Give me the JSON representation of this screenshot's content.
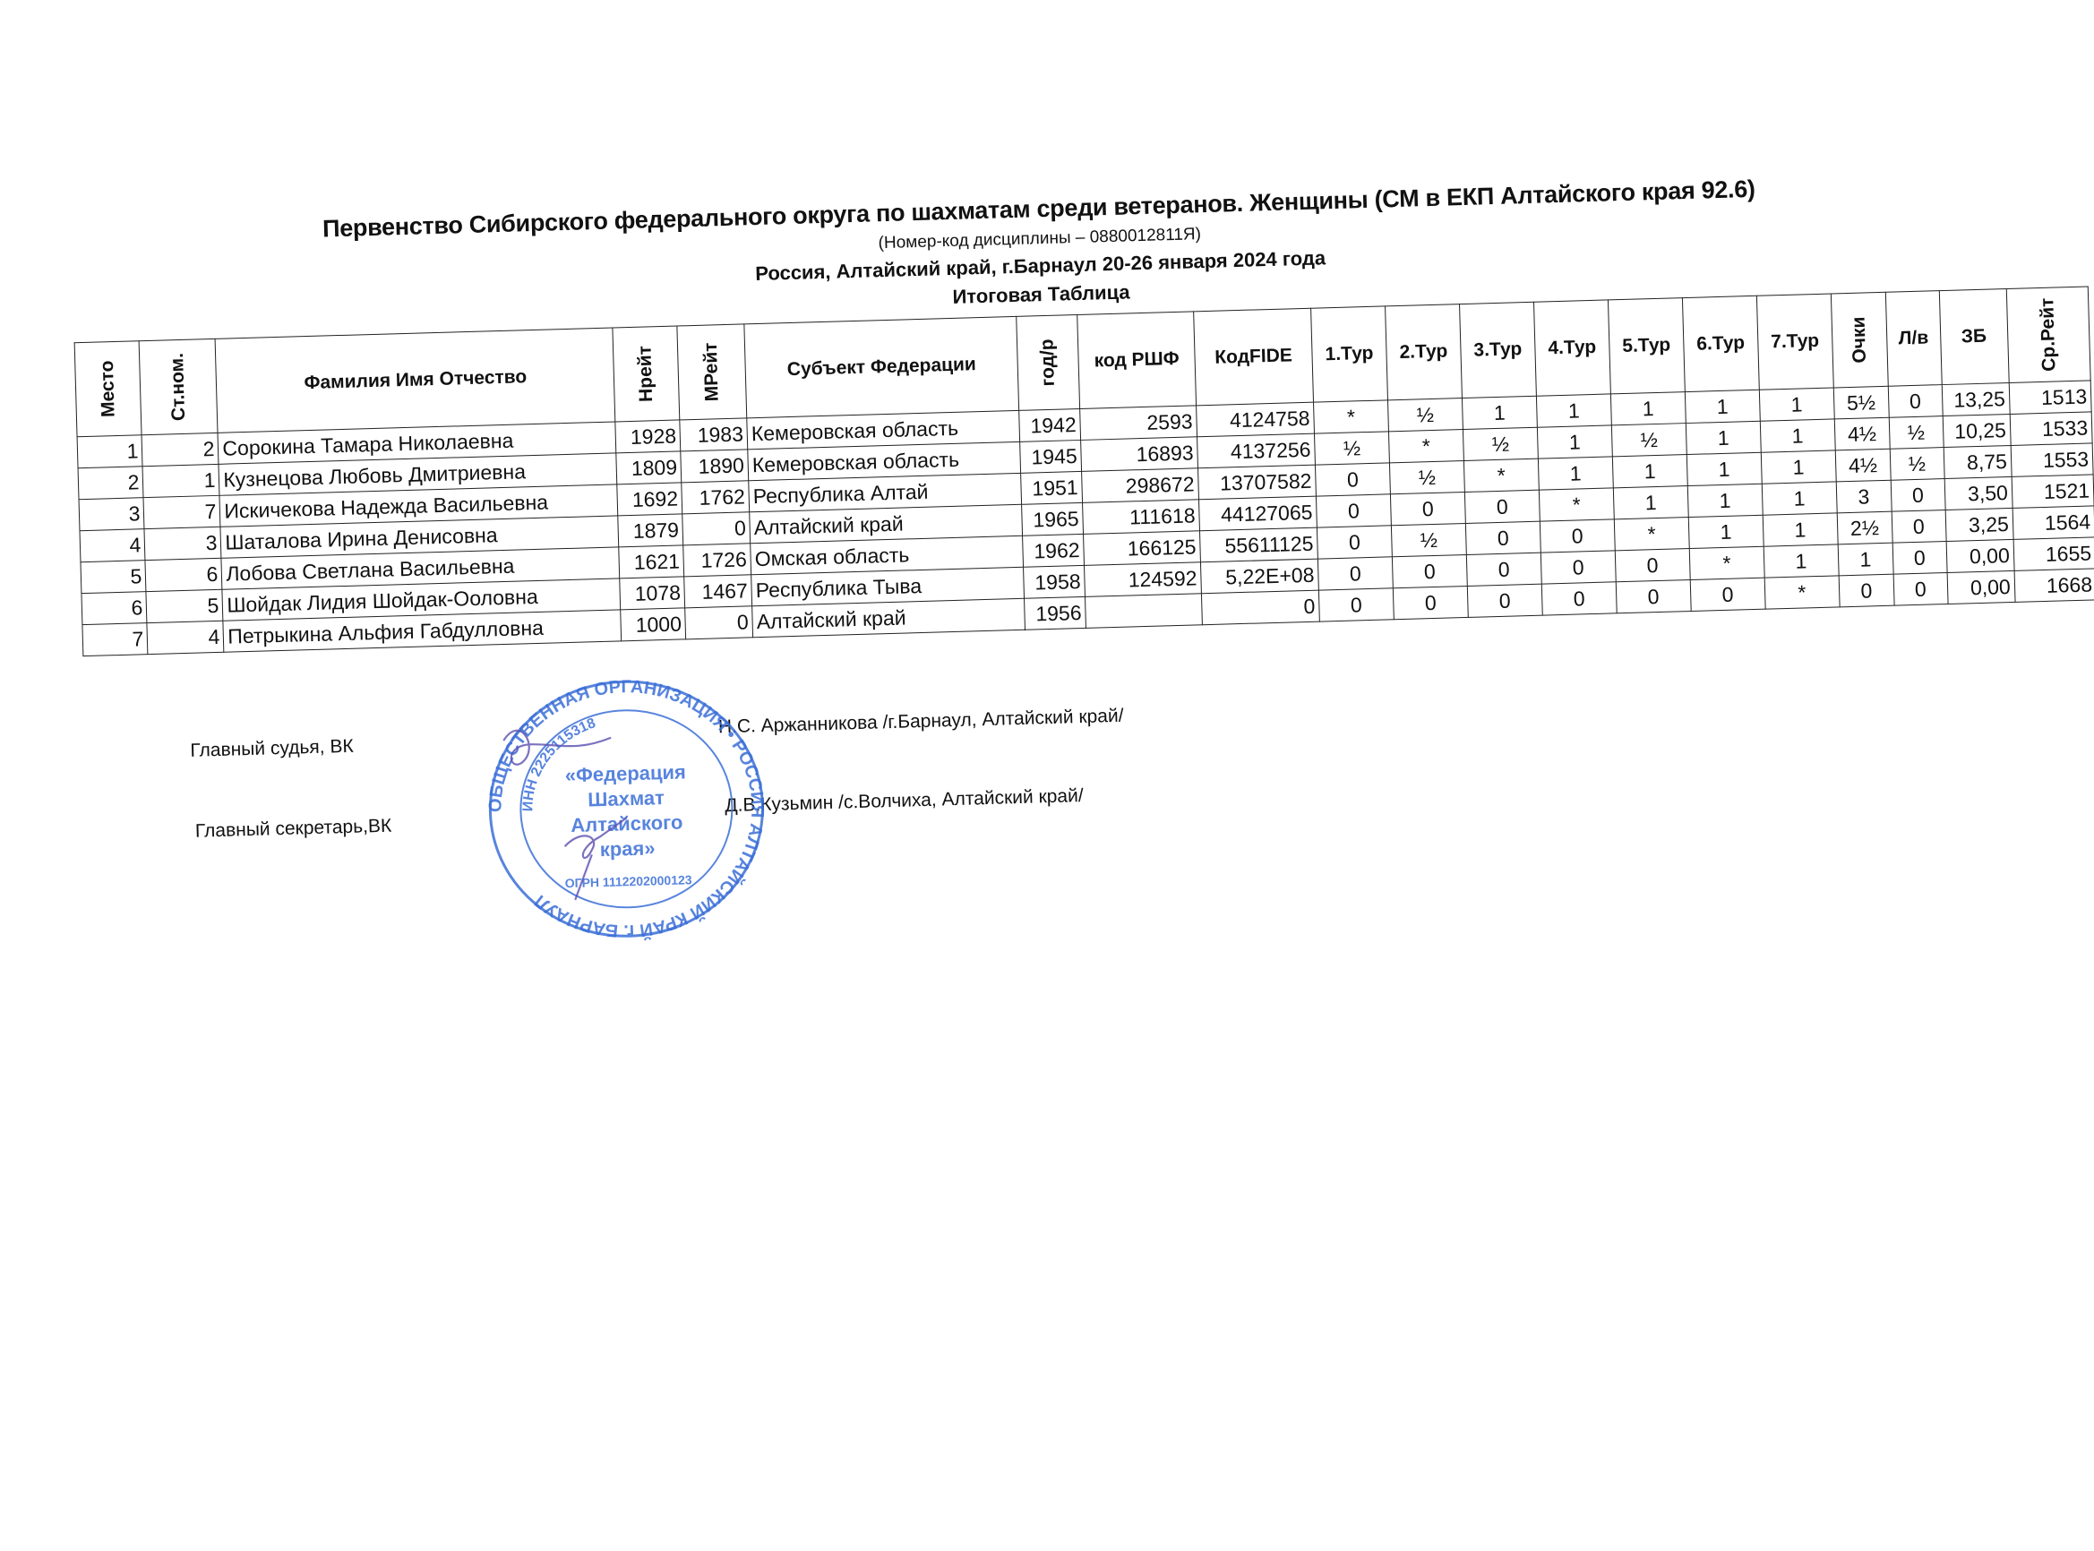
{
  "header": {
    "title": "Первенство Сибирского федерального округа по шахматам среди ветеранов. Женщины (СМ в ЕКП Алтайского края 92.6)",
    "discipline": "(Номер-код дисциплины – 0880012811Я)",
    "location": "Россия, Алтайский край, г.Барнаул 20-26 января 2024 года",
    "table_title": "Итоговая Таблица"
  },
  "table": {
    "columns": [
      "Место",
      "Ст.ном.",
      "Фамилия Имя Отчество",
      "Нрейт",
      "МРейт",
      "Субъект Федерации",
      "год/р",
      "код РШФ",
      "КодFIDE",
      "1.Тур",
      "2.Тур",
      "3.Тур",
      "4.Тур",
      "5.Тур",
      "6.Тур",
      "7.Тур",
      "Очки",
      "Л/в",
      "ЗБ",
      "Ср.Рейт"
    ],
    "rows": [
      [
        "1",
        "2",
        "Сорокина Тамара Николаевна",
        "1928",
        "1983",
        "Кемеровская область",
        "1942",
        "2593",
        "4124758",
        "*",
        "½",
        "1",
        "1",
        "1",
        "1",
        "1",
        "5½",
        "0",
        "13,25",
        "1513"
      ],
      [
        "2",
        "1",
        "Кузнецова Любовь Дмитриевна",
        "1809",
        "1890",
        "Кемеровская область",
        "1945",
        "16893",
        "4137256",
        "½",
        "*",
        "½",
        "1",
        "½",
        "1",
        "1",
        "4½",
        "½",
        "10,25",
        "1533"
      ],
      [
        "3",
        "7",
        "Искичекова Надежда Васильевна",
        "1692",
        "1762",
        "Республика Алтай",
        "1951",
        "298672",
        "13707582",
        "0",
        "½",
        "*",
        "1",
        "1",
        "1",
        "1",
        "4½",
        "½",
        "8,75",
        "1553"
      ],
      [
        "4",
        "3",
        "Шаталова Ирина Денисовна",
        "1879",
        "0",
        "Алтайский край",
        "1965",
        "111618",
        "44127065",
        "0",
        "0",
        "0",
        "*",
        "1",
        "1",
        "1",
        "3",
        "0",
        "3,50",
        "1521"
      ],
      [
        "5",
        "6",
        "Лобова Светлана Васильевна",
        "1621",
        "1726",
        "Омская область",
        "1962",
        "166125",
        "55611125",
        "0",
        "½",
        "0",
        "0",
        "*",
        "1",
        "1",
        "2½",
        "0",
        "3,25",
        "1564"
      ],
      [
        "6",
        "5",
        "Шойдак Лидия Шойдак-Ооловна",
        "1078",
        "1467",
        "Республика Тыва",
        "1958",
        "124592",
        "5,22E+08",
        "0",
        "0",
        "0",
        "0",
        "0",
        "*",
        "1",
        "1",
        "0",
        "0,00",
        "1655"
      ],
      [
        "7",
        "4",
        "Петрыкина Альфия Габдулловна",
        "1000",
        "0",
        "Алтайский край",
        "1956",
        "",
        "0",
        "0",
        "0",
        "0",
        "0",
        "0",
        "0",
        "*",
        "0",
        "0",
        "0,00",
        "1668"
      ]
    ]
  },
  "signatures": {
    "judge_label": "Главный судья, ВК",
    "judge_name": "Н.С. Аржанникова /г.Барнаул, Алтайский край/",
    "secretary_label": "Главный секретарь,ВК",
    "secretary_name": "Д.В.Кузьмин /с.Волчиха, Алтайский край/"
  },
  "stamp": {
    "outer_text": "ОБЩЕСТВЕННАЯ ОРГАНИЗАЦИЯ • РОССИЯ АЛТАЙСКИЙ КРАЙ г. БАРНАУЛ",
    "inn": "ИНН 2225115318",
    "ogrn": "ОГРН 1112202000123",
    "center": "«Федерация Шахмат Алтайского края»",
    "color": "#3b6fd8"
  }
}
